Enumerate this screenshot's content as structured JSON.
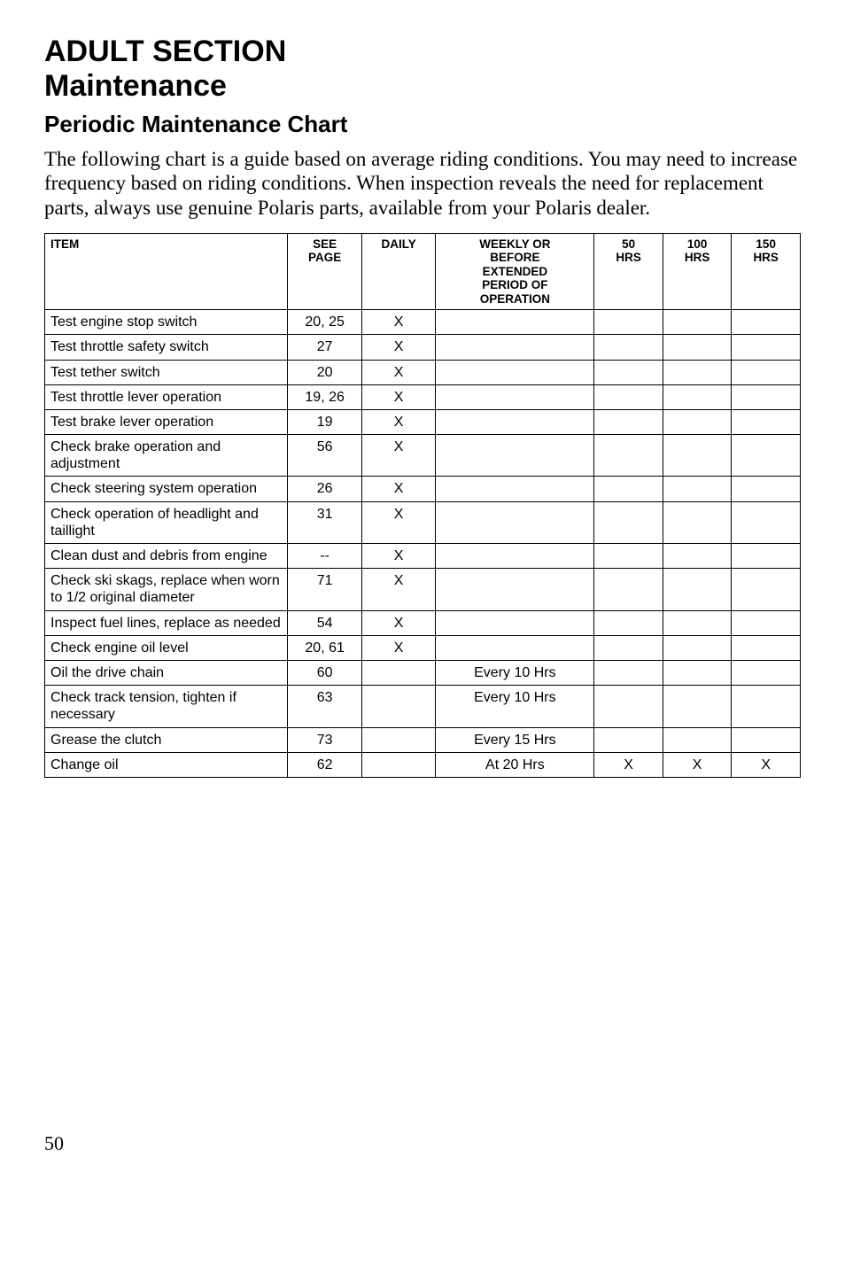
{
  "heading": {
    "section": "ADULT SECTION",
    "subsection": "Maintenance",
    "chart": "Periodic Maintenance Chart"
  },
  "intro": "The following chart is a guide based on average riding conditions. You may need to increase frequency based on riding conditions. When inspection reveals the need for replacement parts, always use genuine Polaris parts, available from your Polaris dealer.",
  "table": {
    "columns": [
      {
        "key": "item",
        "label": "ITEM",
        "class": "col-item"
      },
      {
        "key": "see",
        "label": "SEE\nPAGE",
        "class": "col-see"
      },
      {
        "key": "daily",
        "label": "DAILY",
        "class": "col-daily"
      },
      {
        "key": "weekly",
        "label": "WEEKLY OR\nBEFORE\nEXTENDED\nPERIOD OF\nOPERATION",
        "class": "col-weekly"
      },
      {
        "key": "h50",
        "label": "50\nHRS",
        "class": "col-50"
      },
      {
        "key": "h100",
        "label": "100\nHRS",
        "class": "col-100"
      },
      {
        "key": "h150",
        "label": "150\nHRS",
        "class": "col-150"
      }
    ],
    "rows": [
      {
        "item": "Test engine stop switch",
        "see": "20, 25",
        "daily": "X",
        "weekly": "",
        "h50": "",
        "h100": "",
        "h150": ""
      },
      {
        "item": "Test throttle safety switch",
        "see": "27",
        "daily": "X",
        "weekly": "",
        "h50": "",
        "h100": "",
        "h150": ""
      },
      {
        "item": "Test tether switch",
        "see": "20",
        "daily": "X",
        "weekly": "",
        "h50": "",
        "h100": "",
        "h150": ""
      },
      {
        "item": "Test throttle lever operation",
        "see": "19, 26",
        "daily": "X",
        "weekly": "",
        "h50": "",
        "h100": "",
        "h150": ""
      },
      {
        "item": "Test brake lever operation",
        "see": "19",
        "daily": "X",
        "weekly": "",
        "h50": "",
        "h100": "",
        "h150": ""
      },
      {
        "item": "Check brake operation and adjustment",
        "see": "56",
        "daily": "X",
        "weekly": "",
        "h50": "",
        "h100": "",
        "h150": ""
      },
      {
        "item": "Check steering system operation",
        "see": "26",
        "daily": "X",
        "weekly": "",
        "h50": "",
        "h100": "",
        "h150": ""
      },
      {
        "item": "Check operation of headlight and taillight",
        "see": "31",
        "daily": "X",
        "weekly": "",
        "h50": "",
        "h100": "",
        "h150": ""
      },
      {
        "item": "Clean dust and debris from engine",
        "see": "--",
        "daily": "X",
        "weekly": "",
        "h50": "",
        "h100": "",
        "h150": ""
      },
      {
        "item": "Check ski skags, replace when worn to 1/2 original diameter",
        "see": "71",
        "daily": "X",
        "weekly": "",
        "h50": "",
        "h100": "",
        "h150": ""
      },
      {
        "item": "Inspect fuel lines, replace as needed",
        "see": "54",
        "daily": "X",
        "weekly": "",
        "h50": "",
        "h100": "",
        "h150": ""
      },
      {
        "item": "Check engine oil level",
        "see": "20, 61",
        "daily": "X",
        "weekly": "",
        "h50": "",
        "h100": "",
        "h150": ""
      },
      {
        "item": "Oil the drive chain",
        "see": "60",
        "daily": "",
        "weekly": "Every 10 Hrs",
        "h50": "",
        "h100": "",
        "h150": ""
      },
      {
        "item": "Check track tension, tighten if necessary",
        "see": "63",
        "daily": "",
        "weekly": "Every 10 Hrs",
        "h50": "",
        "h100": "",
        "h150": ""
      },
      {
        "item": "Grease the clutch",
        "see": "73",
        "daily": "",
        "weekly": "Every 15 Hrs",
        "h50": "",
        "h100": "",
        "h150": ""
      },
      {
        "item": "Change oil",
        "see": "62",
        "daily": "",
        "weekly": "At 20 Hrs",
        "h50": "X",
        "h100": "X",
        "h150": "X"
      }
    ]
  },
  "page_number": "50"
}
